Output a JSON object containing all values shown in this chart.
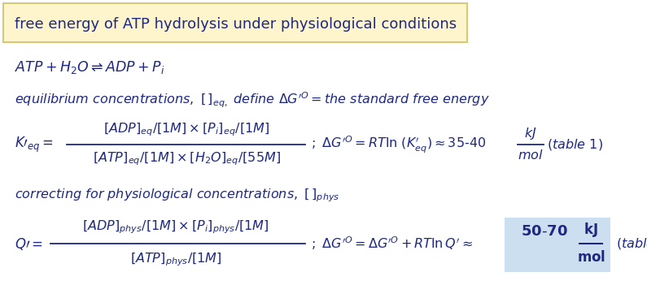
{
  "title": "free energy of ATP hydrolysis under physiological conditions",
  "title_bg": "#FFF5CC",
  "text_color": "#1e2882",
  "bg_color": "#ffffff",
  "highlight_color": "#ccdff0",
  "border_color": "#d4c87a",
  "fig_width": 7.95,
  "fig_height": 3.67,
  "dpi": 100
}
